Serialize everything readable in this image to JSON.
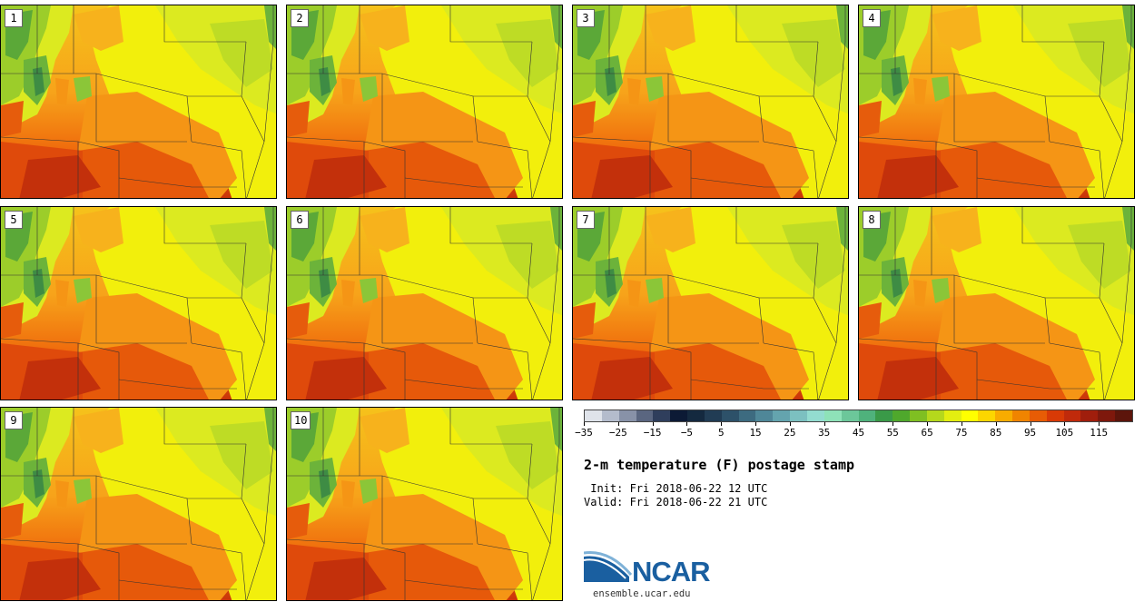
{
  "panels": [
    {
      "label": "1"
    },
    {
      "label": "2"
    },
    {
      "label": "3"
    },
    {
      "label": "4"
    },
    {
      "label": "5"
    },
    {
      "label": "6"
    },
    {
      "label": "7"
    },
    {
      "label": "8"
    },
    {
      "label": "9"
    },
    {
      "label": "10"
    }
  ],
  "colorbar": {
    "colors": [
      "#dfe3ea",
      "#b4bccc",
      "#8892a8",
      "#5a6680",
      "#2f3e5c",
      "#0c1a35",
      "#14293f",
      "#213c54",
      "#2d5169",
      "#3d6b80",
      "#4f8798",
      "#64a4ae",
      "#7cc0c0",
      "#93dcd0",
      "#8ee2b8",
      "#6cc79a",
      "#4fb27c",
      "#3a9a48",
      "#4fa82c",
      "#7fbf22",
      "#b5d81c",
      "#e3ee10",
      "#ffff00",
      "#fcd600",
      "#f8ac00",
      "#f08400",
      "#e75c05",
      "#d83a06",
      "#c02a0b",
      "#a01e0c",
      "#7e180c",
      "#5c150b"
    ],
    "tick_labels": [
      "−35",
      "−25",
      "−15",
      "−5",
      "5",
      "15",
      "25",
      "35",
      "45",
      "55",
      "65",
      "75",
      "85",
      "95",
      "105",
      "115"
    ]
  },
  "title": "2-m temperature (F) postage stamp",
  "init": " Init: Fri 2018-06-22 12 UTC",
  "valid": "Valid: Fri 2018-06-22 21 UTC",
  "logo": {
    "name": "NCAR",
    "site": "ensemble.ucar.edu"
  }
}
